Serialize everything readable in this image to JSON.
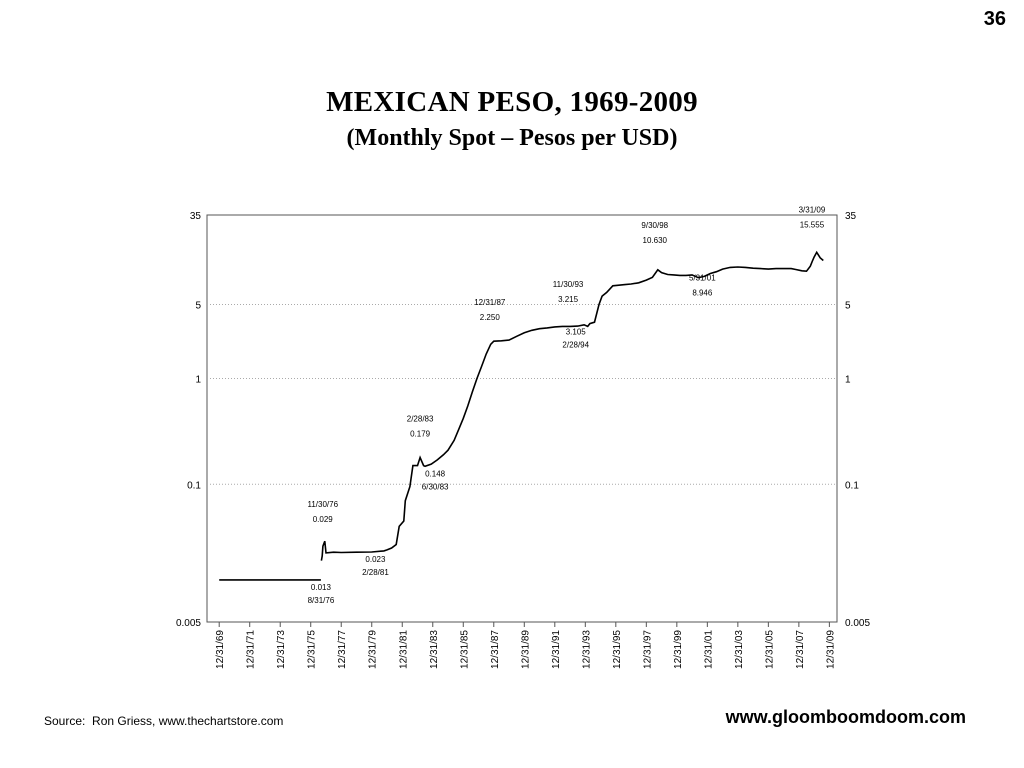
{
  "slide": {
    "page_number": "36",
    "source": "Source:  Ron Griess, www.thechartstore.com",
    "website": "www.gloomboomdoom.com"
  },
  "chart_data": {
    "type": "line",
    "title": "MEXICAN  PESO, 1969-2009",
    "subtitle": "(Monthly Spot – Pesos per USD)",
    "y_scale": "log",
    "ylim": [
      0.005,
      35
    ],
    "y_ticks": [
      {
        "value": 35,
        "label": "35"
      },
      {
        "value": 5,
        "label": "5"
      },
      {
        "value": 1,
        "label": "1"
      },
      {
        "value": 0.1,
        "label": "0.1"
      },
      {
        "value": 0.005,
        "label": "0.005"
      }
    ],
    "grid": "dotted horizontal at y ticks",
    "x_range": [
      1969.9,
      2010.0
    ],
    "x_ticks": [
      {
        "value": 1970.0,
        "label": "12/31/69"
      },
      {
        "value": 1972.0,
        "label": "12/31/71"
      },
      {
        "value": 1974.0,
        "label": "12/31/73"
      },
      {
        "value": 1976.0,
        "label": "12/31/75"
      },
      {
        "value": 1978.0,
        "label": "12/31/77"
      },
      {
        "value": 1980.0,
        "label": "12/31/79"
      },
      {
        "value": 1982.0,
        "label": "12/31/81"
      },
      {
        "value": 1984.0,
        "label": "12/31/83"
      },
      {
        "value": 1986.0,
        "label": "12/31/85"
      },
      {
        "value": 1988.0,
        "label": "12/31/87"
      },
      {
        "value": 1990.0,
        "label": "12/31/89"
      },
      {
        "value": 1992.0,
        "label": "12/31/91"
      },
      {
        "value": 1994.0,
        "label": "12/31/93"
      },
      {
        "value": 1996.0,
        "label": "12/31/95"
      },
      {
        "value": 1998.0,
        "label": "12/31/97"
      },
      {
        "value": 2000.0,
        "label": "12/31/99"
      },
      {
        "value": 2002.0,
        "label": "12/31/01"
      },
      {
        "value": 2004.0,
        "label": "12/31/03"
      },
      {
        "value": 2006.0,
        "label": "12/31/05"
      },
      {
        "value": 2008.0,
        "label": "12/31/07"
      },
      {
        "value": 2010.0,
        "label": "12/31/09"
      }
    ],
    "series": [
      {
        "color": "#000000",
        "points": [
          [
            1970.0,
            0.0125
          ],
          [
            1972.0,
            0.0125
          ],
          [
            1974.0,
            0.0125
          ],
          [
            1976.0,
            0.0125
          ],
          [
            1976.67,
            0.0125
          ],
          [
            1976.7,
            0.019
          ],
          [
            1976.75,
            0.021
          ],
          [
            1976.8,
            0.026
          ],
          [
            1976.92,
            0.029
          ],
          [
            1977.0,
            0.0225
          ],
          [
            1977.5,
            0.0228
          ],
          [
            1978.0,
            0.0227
          ],
          [
            1979.0,
            0.0228
          ],
          [
            1980.0,
            0.0229
          ],
          [
            1980.8,
            0.0235
          ],
          [
            1981.0,
            0.024
          ],
          [
            1981.3,
            0.025
          ],
          [
            1981.6,
            0.027
          ],
          [
            1981.8,
            0.04
          ],
          [
            1982.1,
            0.045
          ],
          [
            1982.2,
            0.07
          ],
          [
            1982.5,
            0.095
          ],
          [
            1982.7,
            0.15
          ],
          [
            1983.0,
            0.15
          ],
          [
            1983.17,
            0.179
          ],
          [
            1983.4,
            0.15
          ],
          [
            1983.5,
            0.148
          ],
          [
            1983.9,
            0.155
          ],
          [
            1984.3,
            0.17
          ],
          [
            1984.7,
            0.19
          ],
          [
            1985.0,
            0.21
          ],
          [
            1985.4,
            0.26
          ],
          [
            1985.7,
            0.33
          ],
          [
            1986.0,
            0.42
          ],
          [
            1986.3,
            0.55
          ],
          [
            1986.6,
            0.75
          ],
          [
            1986.9,
            1.0
          ],
          [
            1987.2,
            1.3
          ],
          [
            1987.5,
            1.7
          ],
          [
            1987.8,
            2.1
          ],
          [
            1988.0,
            2.25
          ],
          [
            1988.5,
            2.27
          ],
          [
            1989.0,
            2.3
          ],
          [
            1989.5,
            2.5
          ],
          [
            1990.0,
            2.7
          ],
          [
            1990.5,
            2.85
          ],
          [
            1991.0,
            2.95
          ],
          [
            1991.5,
            3.0
          ],
          [
            1992.0,
            3.07
          ],
          [
            1992.5,
            3.1
          ],
          [
            1993.0,
            3.1
          ],
          [
            1993.5,
            3.12
          ],
          [
            1993.92,
            3.215
          ],
          [
            1994.16,
            3.105
          ],
          [
            1994.3,
            3.3
          ],
          [
            1994.6,
            3.4
          ],
          [
            1994.9,
            5.0
          ],
          [
            1995.1,
            6.0
          ],
          [
            1995.4,
            6.5
          ],
          [
            1995.8,
            7.5
          ],
          [
            1996.2,
            7.6
          ],
          [
            1996.6,
            7.7
          ],
          [
            1997.0,
            7.8
          ],
          [
            1997.5,
            8.0
          ],
          [
            1998.0,
            8.5
          ],
          [
            1998.4,
            9.0
          ],
          [
            1998.75,
            10.63
          ],
          [
            1999.0,
            10.0
          ],
          [
            1999.4,
            9.6
          ],
          [
            1999.8,
            9.5
          ],
          [
            2000.2,
            9.4
          ],
          [
            2000.6,
            9.4
          ],
          [
            2001.0,
            9.5
          ],
          [
            2001.41,
            8.946
          ],
          [
            2001.8,
            9.2
          ],
          [
            2002.2,
            9.8
          ],
          [
            2002.6,
            10.2
          ],
          [
            2003.0,
            10.8
          ],
          [
            2003.5,
            11.2
          ],
          [
            2004.0,
            11.3
          ],
          [
            2004.5,
            11.2
          ],
          [
            2005.0,
            11.0
          ],
          [
            2005.5,
            10.9
          ],
          [
            2006.0,
            10.8
          ],
          [
            2006.5,
            10.9
          ],
          [
            2007.0,
            10.9
          ],
          [
            2007.5,
            10.9
          ],
          [
            2007.8,
            10.7
          ],
          [
            2008.2,
            10.4
          ],
          [
            2008.5,
            10.3
          ],
          [
            2008.75,
            11.5
          ],
          [
            2008.9,
            13.0
          ],
          [
            2009.0,
            14.0
          ],
          [
            2009.17,
            15.555
          ],
          [
            2009.4,
            13.8
          ],
          [
            2009.6,
            13.0
          ]
        ]
      }
    ],
    "annotations": [
      {
        "date": "8/31/76",
        "value": "0.013",
        "x": 1976.67,
        "y": 0.0125
      },
      {
        "date": "11/30/76",
        "value": "0.029",
        "x": 1976.92,
        "y": 0.029
      },
      {
        "date": "2/28/81",
        "value": "0.023",
        "x": 1981.16,
        "y": 0.024
      },
      {
        "date": "2/28/83",
        "value": "0.179",
        "x": 1983.17,
        "y": 0.179
      },
      {
        "date": "6/30/83",
        "value": "0.148",
        "x": 1983.5,
        "y": 0.148
      },
      {
        "date": "12/31/87",
        "value": "2.250",
        "x": 1988.0,
        "y": 2.25
      },
      {
        "date": "11/30/93",
        "value": "3.215",
        "x": 1993.92,
        "y": 3.215
      },
      {
        "date": "2/28/94",
        "value": "3.105",
        "x": 1994.16,
        "y": 3.105
      },
      {
        "date": "9/30/98",
        "value": "10.630",
        "x": 1998.75,
        "y": 10.63
      },
      {
        "date": "5/31/01",
        "value": "8.946",
        "x": 2001.41,
        "y": 8.946
      },
      {
        "date": "3/31/09",
        "value": "15.555",
        "x": 2009.25,
        "y": 15.555
      }
    ]
  }
}
